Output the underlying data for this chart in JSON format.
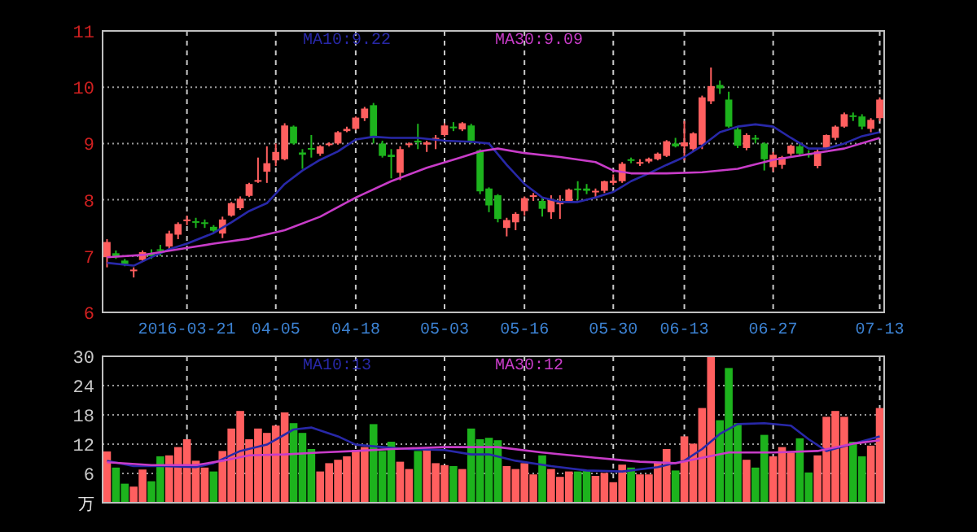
{
  "chart_data": [
    {
      "type": "candlestick",
      "categories": [
        null,
        null,
        null,
        null,
        null,
        null,
        null,
        null,
        null,
        "2016-03-21",
        null,
        null,
        null,
        null,
        null,
        null,
        null,
        null,
        null,
        "04-05",
        null,
        null,
        null,
        null,
        null,
        null,
        null,
        null,
        "04-18",
        null,
        null,
        null,
        null,
        null,
        null,
        null,
        null,
        null,
        "05-03",
        null,
        null,
        null,
        null,
        null,
        null,
        null,
        null,
        "05-16",
        null,
        null,
        null,
        null,
        null,
        null,
        null,
        null,
        null,
        "05-30",
        null,
        null,
        null,
        null,
        null,
        null,
        null,
        "06-13",
        null,
        null,
        null,
        null,
        null,
        null,
        null,
        null,
        null,
        "06-27",
        null,
        null,
        null,
        null,
        null,
        null,
        null,
        null,
        null,
        null,
        null,
        "07-13"
      ],
      "ohlc": [
        [
          6.98,
          7.3,
          6.8,
          7.25
        ],
        [
          7.05,
          7.1,
          6.95,
          6.98
        ],
        [
          6.92,
          6.95,
          6.82,
          6.86
        ],
        [
          6.75,
          6.8,
          6.62,
          6.76
        ],
        [
          6.93,
          7.1,
          6.9,
          7.07
        ],
        [
          7.05,
          7.12,
          6.95,
          7.0
        ],
        [
          7.12,
          7.2,
          7.0,
          7.1
        ],
        [
          7.17,
          7.45,
          7.1,
          7.4
        ],
        [
          7.38,
          7.6,
          7.3,
          7.57
        ],
        [
          7.62,
          7.72,
          7.55,
          7.65
        ],
        [
          7.62,
          7.68,
          7.5,
          7.6
        ],
        [
          7.6,
          7.65,
          7.5,
          7.58
        ],
        [
          7.52,
          7.55,
          7.42,
          7.45
        ],
        [
          7.4,
          7.7,
          7.32,
          7.65
        ],
        [
          7.72,
          7.96,
          7.7,
          7.94
        ],
        [
          7.85,
          8.06,
          7.82,
          8.02
        ],
        [
          8.07,
          8.3,
          8.05,
          8.28
        ],
        [
          8.32,
          8.75,
          8.3,
          8.35
        ],
        [
          8.5,
          8.95,
          8.3,
          8.65
        ],
        [
          8.7,
          9.0,
          8.6,
          8.85
        ],
        [
          8.72,
          9.36,
          8.7,
          9.32
        ],
        [
          9.3,
          9.32,
          8.98,
          9.0
        ],
        [
          8.84,
          8.9,
          8.55,
          8.8
        ],
        [
          8.92,
          9.15,
          8.75,
          8.9
        ],
        [
          8.82,
          8.97,
          8.78,
          8.95
        ],
        [
          8.98,
          9.02,
          8.95,
          9.0
        ],
        [
          9.0,
          9.22,
          8.98,
          9.2
        ],
        [
          9.22,
          9.3,
          9.2,
          9.26
        ],
        [
          9.26,
          9.48,
          9.24,
          9.46
        ],
        [
          9.45,
          9.65,
          9.4,
          9.62
        ],
        [
          9.68,
          9.72,
          9.0,
          9.1
        ],
        [
          9.0,
          9.05,
          8.75,
          8.78
        ],
        [
          8.8,
          8.9,
          8.38,
          8.76
        ],
        [
          8.48,
          8.95,
          8.35,
          8.9
        ],
        [
          8.98,
          9.02,
          8.93,
          9.0
        ],
        [
          9.05,
          9.35,
          8.9,
          9.02
        ],
        [
          8.98,
          9.05,
          8.85,
          9.02
        ],
        [
          9.08,
          9.15,
          8.9,
          9.1
        ],
        [
          9.15,
          9.36,
          9.12,
          9.32
        ],
        [
          9.3,
          9.38,
          9.22,
          9.28
        ],
        [
          9.25,
          9.38,
          9.22,
          9.36
        ],
        [
          9.32,
          9.35,
          9.0,
          9.05
        ],
        [
          8.88,
          8.9,
          8.1,
          8.15
        ],
        [
          8.2,
          8.22,
          7.78,
          7.9
        ],
        [
          8.08,
          8.1,
          7.6,
          7.66
        ],
        [
          7.5,
          7.68,
          7.35,
          7.64
        ],
        [
          7.6,
          7.78,
          7.46,
          7.75
        ],
        [
          7.8,
          8.06,
          7.72,
          8.03
        ],
        [
          8.06,
          8.12,
          7.98,
          8.08
        ],
        [
          7.98,
          8.05,
          7.7,
          7.84
        ],
        [
          7.78,
          8.08,
          7.66,
          8.0
        ],
        [
          7.92,
          8.08,
          7.66,
          7.95
        ],
        [
          7.98,
          8.2,
          7.95,
          8.18
        ],
        [
          8.2,
          8.33,
          8.0,
          8.18
        ],
        [
          8.2,
          8.28,
          8.1,
          8.16
        ],
        [
          8.14,
          8.2,
          8.02,
          8.16
        ],
        [
          8.16,
          8.34,
          8.12,
          8.33
        ],
        [
          8.3,
          8.45,
          8.26,
          8.34
        ],
        [
          8.33,
          8.67,
          8.3,
          8.64
        ],
        [
          8.72,
          8.75,
          8.65,
          8.7
        ],
        [
          8.66,
          8.72,
          8.6,
          8.67
        ],
        [
          8.68,
          8.75,
          8.65,
          8.73
        ],
        [
          8.72,
          8.84,
          8.7,
          8.82
        ],
        [
          8.78,
          9.06,
          8.76,
          9.04
        ],
        [
          9.0,
          9.1,
          8.93,
          8.95
        ],
        [
          8.95,
          9.4,
          8.7,
          9.02
        ],
        [
          8.9,
          9.2,
          8.85,
          9.18
        ],
        [
          8.98,
          9.85,
          8.9,
          9.82
        ],
        [
          9.75,
          10.35,
          9.7,
          10.02
        ],
        [
          10.04,
          10.12,
          9.88,
          9.98
        ],
        [
          9.78,
          9.92,
          9.28,
          9.3
        ],
        [
          9.25,
          9.3,
          8.92,
          8.96
        ],
        [
          8.92,
          9.18,
          8.88,
          9.15
        ],
        [
          9.1,
          9.15,
          9.0,
          9.08
        ],
        [
          9.0,
          9.02,
          8.52,
          8.72
        ],
        [
          8.58,
          8.85,
          8.5,
          8.8
        ],
        [
          8.62,
          8.78,
          8.55,
          8.76
        ],
        [
          8.82,
          8.98,
          8.78,
          8.96
        ],
        [
          8.95,
          9.0,
          8.8,
          8.82
        ],
        [
          8.82,
          8.88,
          8.75,
          8.8
        ],
        [
          8.6,
          8.9,
          8.56,
          8.86
        ],
        [
          8.92,
          9.16,
          8.9,
          9.15
        ],
        [
          9.1,
          9.32,
          9.06,
          9.3
        ],
        [
          9.3,
          9.55,
          9.28,
          9.52
        ],
        [
          9.5,
          9.55,
          9.4,
          9.48
        ],
        [
          9.48,
          9.52,
          9.25,
          9.3
        ],
        [
          9.26,
          9.45,
          9.2,
          9.42
        ],
        [
          9.45,
          9.82,
          9.4,
          9.78
        ]
      ],
      "colors": [
        "#ff5f5f",
        "#1db31d",
        "#1db31d",
        "#ff5f5f",
        "#ff5f5f",
        "#1db31d",
        "#1db31d",
        "#ff5f5f",
        "#ff5f5f",
        "#ff5f5f",
        "#1db31d",
        "#1db31d",
        "#1db31d",
        "#ff5f5f",
        "#ff5f5f",
        "#ff5f5f",
        "#ff5f5f",
        "#ff5f5f",
        "#ff5f5f",
        "#ff5f5f",
        "#ff5f5f",
        "#1db31d",
        "#1db31d",
        "#1db31d",
        "#ff5f5f",
        "#ff5f5f",
        "#ff5f5f",
        "#ff5f5f",
        "#ff5f5f",
        "#ff5f5f",
        "#1db31d",
        "#1db31d",
        "#1db31d",
        "#ff5f5f",
        "#ff5f5f",
        "#1db31d",
        "#ff5f5f",
        "#ff5f5f",
        "#ff5f5f",
        "#1db31d",
        "#ff5f5f",
        "#1db31d",
        "#1db31d",
        "#1db31d",
        "#1db31d",
        "#ff5f5f",
        "#ff5f5f",
        "#ff5f5f",
        "#ff5f5f",
        "#1db31d",
        "#ff5f5f",
        "#ff5f5f",
        "#ff5f5f",
        "#1db31d",
        "#1db31d",
        "#ff5f5f",
        "#ff5f5f",
        "#ff5f5f",
        "#ff5f5f",
        "#1db31d",
        "#ff5f5f",
        "#ff5f5f",
        "#ff5f5f",
        "#ff5f5f",
        "#1db31d",
        "#ff5f5f",
        "#ff5f5f",
        "#ff5f5f",
        "#ff5f5f",
        "#1db31d",
        "#1db31d",
        "#1db31d",
        "#ff5f5f",
        "#1db31d",
        "#1db31d",
        "#ff5f5f",
        "#ff5f5f",
        "#ff5f5f",
        "#1db31d",
        "#1db31d",
        "#ff5f5f",
        "#ff5f5f",
        "#ff5f5f",
        "#ff5f5f",
        "#1db31d",
        "#1db31d",
        "#ff5f5f",
        "#ff5f5f"
      ],
      "series": [
        {
          "type": "line",
          "name": "MA10:9.22",
          "color": "#2828a8",
          "values": [
            6.88,
            null,
            null,
            6.83,
            null,
            6.98,
            null,
            7.12,
            null,
            7.22,
            null,
            null,
            7.41,
            null,
            7.6,
            null,
            7.8,
            null,
            7.94,
            null,
            8.28,
            null,
            8.52,
            null,
            8.71,
            null,
            8.86,
            null,
            9.07,
            null,
            9.12,
            null,
            9.1,
            null,
            null,
            9.1,
            null,
            null,
            9.05,
            null,
            null,
            9.03,
            null,
            9.0,
            null,
            8.62,
            null,
            8.28,
            null,
            8.04,
            null,
            7.96,
            null,
            7.96,
            null,
            8.04,
            null,
            8.14,
            null,
            8.33,
            null,
            8.47,
            null,
            8.62,
            null,
            8.76,
            null,
            8.96,
            null,
            9.2,
            null,
            9.3,
            null,
            9.34,
            null,
            9.3,
            null,
            9.1,
            null,
            8.91,
            null,
            8.91,
            null,
            9.0,
            null,
            9.13,
            null,
            9.2
          ]
        },
        {
          "type": "line",
          "name": "MA30:9.09",
          "color": "#c83cc8",
          "values": [
            6.98,
            null,
            null,
            null,
            7.02,
            null,
            null,
            null,
            7.12,
            null,
            null,
            null,
            7.22,
            null,
            null,
            null,
            7.31,
            null,
            null,
            null,
            7.46,
            null,
            null,
            null,
            7.7,
            null,
            null,
            null,
            8.04,
            null,
            null,
            null,
            8.33,
            null,
            null,
            null,
            8.57,
            null,
            null,
            null,
            8.76,
            null,
            8.86,
            null,
            8.91,
            null,
            null,
            8.83,
            null,
            null,
            null,
            8.76,
            null,
            null,
            null,
            8.67,
            null,
            8.52,
            null,
            8.47,
            null,
            null,
            null,
            8.47,
            null,
            null,
            null,
            8.49,
            null,
            null,
            null,
            8.55,
            null,
            null,
            null,
            8.71,
            null,
            null,
            null,
            8.81,
            null,
            null,
            null,
            8.91,
            null,
            null,
            null,
            9.1
          ]
        }
      ],
      "ylim": [
        6,
        11
      ],
      "yticks": [
        6,
        7,
        8,
        9,
        10,
        11
      ],
      "grid": true
    },
    {
      "type": "bar",
      "categories": [
        null,
        null,
        null,
        null,
        null,
        null,
        null,
        null,
        null,
        null,
        null,
        null,
        null,
        null,
        null,
        null,
        null,
        null,
        null,
        null,
        null,
        null,
        null,
        null,
        null,
        null,
        null,
        null,
        null,
        null,
        null,
        null,
        null,
        null,
        null,
        null,
        null,
        null,
        null,
        null,
        null,
        null,
        null,
        null,
        null,
        null,
        null,
        null,
        null,
        null,
        null,
        null,
        null,
        null,
        null,
        null,
        null,
        null,
        null,
        null,
        null,
        null,
        null,
        null,
        null,
        null,
        null,
        null,
        null,
        null,
        null,
        null,
        null,
        null,
        null,
        null,
        null,
        null,
        null,
        null,
        null,
        null,
        null,
        null,
        null,
        null,
        null,
        null
      ],
      "values": [
        10.5,
        7.2,
        3.9,
        3.3,
        6.8,
        4.4,
        9.5,
        9.7,
        11.4,
        13.0,
        8.6,
        7.2,
        6.4,
        10.6,
        15.2,
        18.8,
        13.0,
        15.2,
        14.3,
        15.8,
        18.5,
        16.3,
        14.3,
        11.0,
        6.4,
        8.1,
        8.8,
        9.5,
        10.8,
        11.4,
        16.1,
        10.6,
        12.5,
        8.4,
        6.9,
        10.6,
        10.8,
        8.1,
        7.7,
        7.5,
        6.9,
        15.2,
        13.0,
        13.3,
        12.8,
        7.5,
        6.9,
        8.1,
        5.8,
        9.7,
        6.9,
        5.3,
        6.4,
        6.4,
        6.6,
        5.5,
        6.1,
        4.2,
        7.8,
        7.2,
        5.8,
        5.8,
        8.3,
        11.0,
        6.6,
        13.6,
        12.1,
        19.4,
        29.9,
        16.9,
        27.6,
        16.3,
        8.8,
        7.2,
        13.9,
        9.5,
        11.4,
        10.3,
        13.2,
        6.2,
        9.7,
        17.6,
        18.8,
        17.6,
        12.5,
        9.5,
        11.7,
        19.4
      ],
      "colors": [
        "#ff5f5f",
        "#1db31d",
        "#1db31d",
        "#ff5f5f",
        "#ff5f5f",
        "#1db31d",
        "#1db31d",
        "#ff5f5f",
        "#ff5f5f",
        "#ff5f5f",
        "#ff5f5f",
        "#ff5f5f",
        "#1db31d",
        "#ff5f5f",
        "#ff5f5f",
        "#ff5f5f",
        "#ff5f5f",
        "#ff5f5f",
        "#ff5f5f",
        "#ff5f5f",
        "#ff5f5f",
        "#1db31d",
        "#1db31d",
        "#1db31d",
        "#ff5f5f",
        "#ff5f5f",
        "#ff5f5f",
        "#ff5f5f",
        "#ff5f5f",
        "#ff5f5f",
        "#1db31d",
        "#1db31d",
        "#1db31d",
        "#ff5f5f",
        "#ff5f5f",
        "#1db31d",
        "#ff5f5f",
        "#ff5f5f",
        "#ff5f5f",
        "#1db31d",
        "#ff5f5f",
        "#1db31d",
        "#1db31d",
        "#1db31d",
        "#1db31d",
        "#ff5f5f",
        "#ff5f5f",
        "#ff5f5f",
        "#ff5f5f",
        "#1db31d",
        "#ff5f5f",
        "#ff5f5f",
        "#ff5f5f",
        "#1db31d",
        "#1db31d",
        "#ff5f5f",
        "#ff5f5f",
        "#ff5f5f",
        "#ff5f5f",
        "#1db31d",
        "#ff5f5f",
        "#ff5f5f",
        "#ff5f5f",
        "#ff5f5f",
        "#1db31d",
        "#ff5f5f",
        "#ff5f5f",
        "#ff5f5f",
        "#ff5f5f",
        "#1db31d",
        "#1db31d",
        "#1db31d",
        "#ff5f5f",
        "#1db31d",
        "#1db31d",
        "#ff5f5f",
        "#ff5f5f",
        "#ff5f5f",
        "#1db31d",
        "#1db31d",
        "#ff5f5f",
        "#ff5f5f",
        "#ff5f5f",
        "#ff5f5f",
        "#1db31d",
        "#1db31d",
        "#ff5f5f",
        "#ff5f5f"
      ],
      "series": [
        {
          "type": "line",
          "name": "MA10:13",
          "color": "#2828a8",
          "values": [
            8.6,
            null,
            null,
            7.5,
            null,
            null,
            7.5,
            null,
            null,
            null,
            7.3,
            null,
            8.1,
            null,
            null,
            10.6,
            null,
            null,
            11.9,
            null,
            null,
            15.0,
            null,
            15.4,
            null,
            null,
            13.6,
            null,
            11.9,
            null,
            null,
            11.4,
            null,
            null,
            11.0,
            null,
            null,
            null,
            10.8,
            null,
            null,
            9.9,
            null,
            9.9,
            null,
            null,
            8.6,
            null,
            null,
            null,
            7.5,
            null,
            null,
            null,
            6.6,
            null,
            null,
            null,
            6.4,
            null,
            null,
            null,
            7.3,
            null,
            null,
            8.6,
            null,
            11.0,
            null,
            14.1,
            null,
            16.1,
            null,
            null,
            16.3,
            null,
            null,
            15.8,
            null,
            13.0,
            null,
            10.6,
            null,
            null,
            12.1,
            null,
            null,
            13.6
          ]
        },
        {
          "type": "line",
          "name": "MA30:12",
          "color": "#c83cc8",
          "values": [
            8.3,
            null,
            null,
            null,
            null,
            7.7,
            null,
            null,
            null,
            null,
            7.7,
            null,
            null,
            8.6,
            null,
            null,
            9.7,
            null,
            null,
            null,
            9.9,
            null,
            null,
            null,
            10.3,
            null,
            null,
            null,
            10.6,
            null,
            null,
            null,
            11.0,
            null,
            null,
            null,
            null,
            null,
            11.4,
            null,
            null,
            null,
            11.4,
            null,
            11.4,
            null,
            null,
            null,
            null,
            10.3,
            null,
            null,
            null,
            null,
            null,
            9.2,
            null,
            null,
            null,
            null,
            8.4,
            null,
            null,
            null,
            8.1,
            null,
            null,
            9.2,
            null,
            null,
            10.3,
            null,
            null,
            null,
            null,
            10.3,
            null,
            null,
            null,
            null,
            10.6,
            null,
            null,
            null,
            12.1,
            null,
            null,
            12.8
          ]
        }
      ],
      "ylim": [
        0,
        30
      ],
      "yticks": [
        6,
        12,
        18,
        24,
        30
      ],
      "ylabel": "万",
      "grid": true,
      "tick_labels": "y"
    }
  ]
}
